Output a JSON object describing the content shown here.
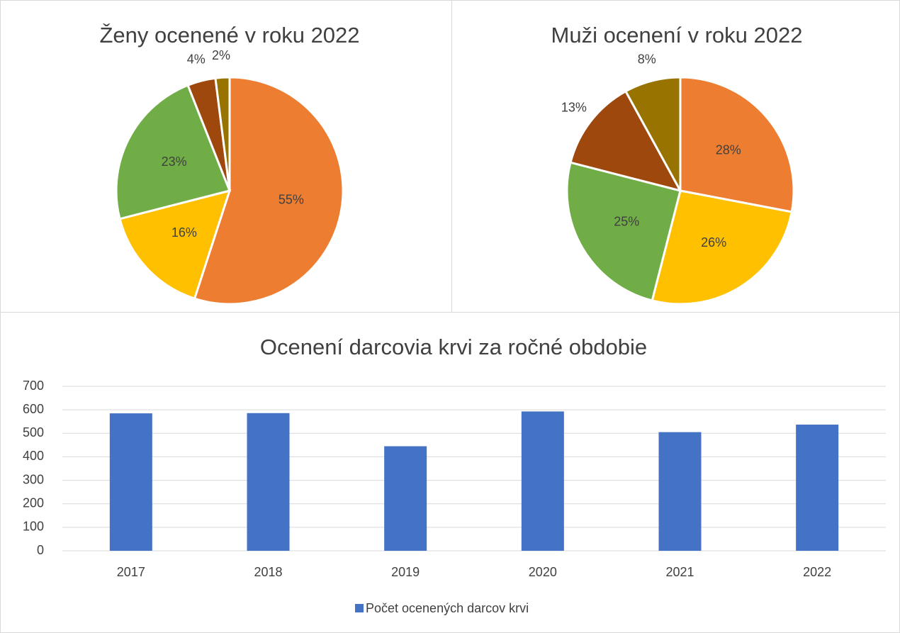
{
  "chart_data": [
    {
      "type": "pie",
      "title": "Ženy ocenené v roku 2022",
      "values": [
        55,
        16,
        23,
        4,
        2
      ],
      "value_labels": [
        "55%",
        "16%",
        "23%",
        "4%",
        "2%"
      ],
      "colors": [
        "#ed7d31",
        "#ffc000",
        "#70ad47",
        "#9e480e",
        "#997300"
      ]
    },
    {
      "type": "pie",
      "title": "Muži ocenení v roku 2022",
      "values": [
        28,
        26,
        25,
        13,
        8
      ],
      "value_labels": [
        "28%",
        "26%",
        "25%",
        "13%",
        "8%"
      ],
      "colors": [
        "#ed7d31",
        "#ffc000",
        "#70ad47",
        "#9e480e",
        "#997300"
      ]
    },
    {
      "type": "bar",
      "title": "Ocenení darcovia krvi za ročné obdobie",
      "categories": [
        "2017",
        "2018",
        "2019",
        "2020",
        "2021",
        "2022"
      ],
      "series": [
        {
          "name": "Počet ocenených darcov krvi",
          "color": "#4472c4",
          "values": [
            585,
            586,
            445,
            593,
            505,
            537
          ]
        }
      ],
      "ylim": [
        0,
        700
      ],
      "yticks": [
        0,
        100,
        200,
        300,
        400,
        500,
        600,
        700
      ],
      "grid": true,
      "legend": "bottom"
    }
  ]
}
